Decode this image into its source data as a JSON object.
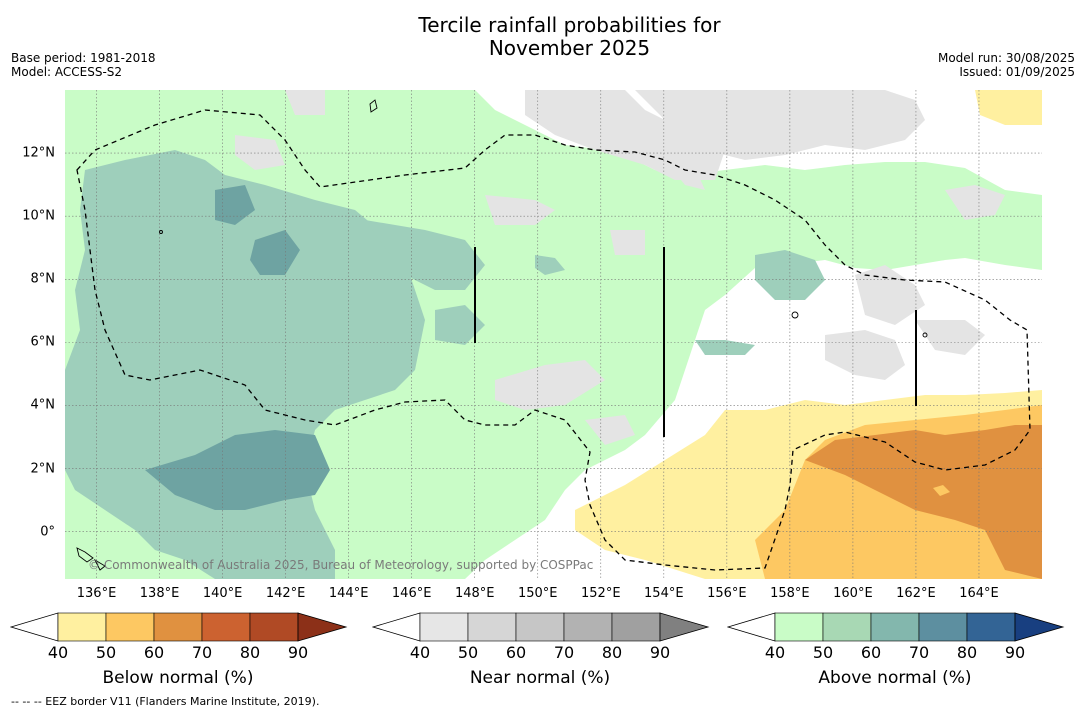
{
  "title_line1": "Tercile rainfall probabilities for",
  "title_line2": "November 2025",
  "base_period": "Base period: 1981-2018",
  "model": "Model: ACCESS-S2",
  "model_run": "Model run: 30/08/2025",
  "issued": "Issued: 01/09/2025",
  "copyright": "© Commonwealth of Australia 2025, Bureau of Meteorology, supported by COSPPac",
  "footnote": "--  --  -- EEZ border V11 (Flanders Marine Institute, 2019).",
  "x_ticks": [
    "136°E",
    "138°E",
    "140°E",
    "142°E",
    "144°E",
    "146°E",
    "148°E",
    "150°E",
    "152°E",
    "154°E",
    "156°E",
    "158°E",
    "160°E",
    "162°E",
    "164°E"
  ],
  "x_tick_values": [
    136,
    138,
    140,
    142,
    144,
    146,
    148,
    150,
    152,
    154,
    156,
    158,
    160,
    162,
    164
  ],
  "y_ticks": [
    "12°N",
    "10°N",
    "8°N",
    "6°N",
    "4°N",
    "2°N",
    "0°"
  ],
  "y_tick_values": [
    12,
    10,
    8,
    6,
    4,
    2,
    0
  ],
  "extent": {
    "lon_min": 135,
    "lon_max": 166,
    "lat_min": -1.5,
    "lat_max": 14
  },
  "colorbars": [
    {
      "label": "Below normal (%)",
      "ticks": [
        "40",
        "50",
        "60",
        "70",
        "80",
        "90"
      ],
      "colors": [
        "#fff0a0",
        "#fdc862",
        "#e09140",
        "#cc6230",
        "#b04a25",
        "#8c3018"
      ]
    },
    {
      "label": "Near normal (%)",
      "ticks": [
        "40",
        "50",
        "60",
        "70",
        "80",
        "90"
      ],
      "colors": [
        "#e6e6e6",
        "#d6d6d6",
        "#c6c6c6",
        "#b2b2b2",
        "#a0a0a0",
        "#808080"
      ]
    },
    {
      "label": "Above normal (%)",
      "ticks": [
        "40",
        "50",
        "60",
        "70",
        "80",
        "90"
      ],
      "colors": [
        "#c9fcc7",
        "#a8d8b4",
        "#83b7ad",
        "#5d8fa0",
        "#336495",
        "#183f80"
      ]
    }
  ]
}
